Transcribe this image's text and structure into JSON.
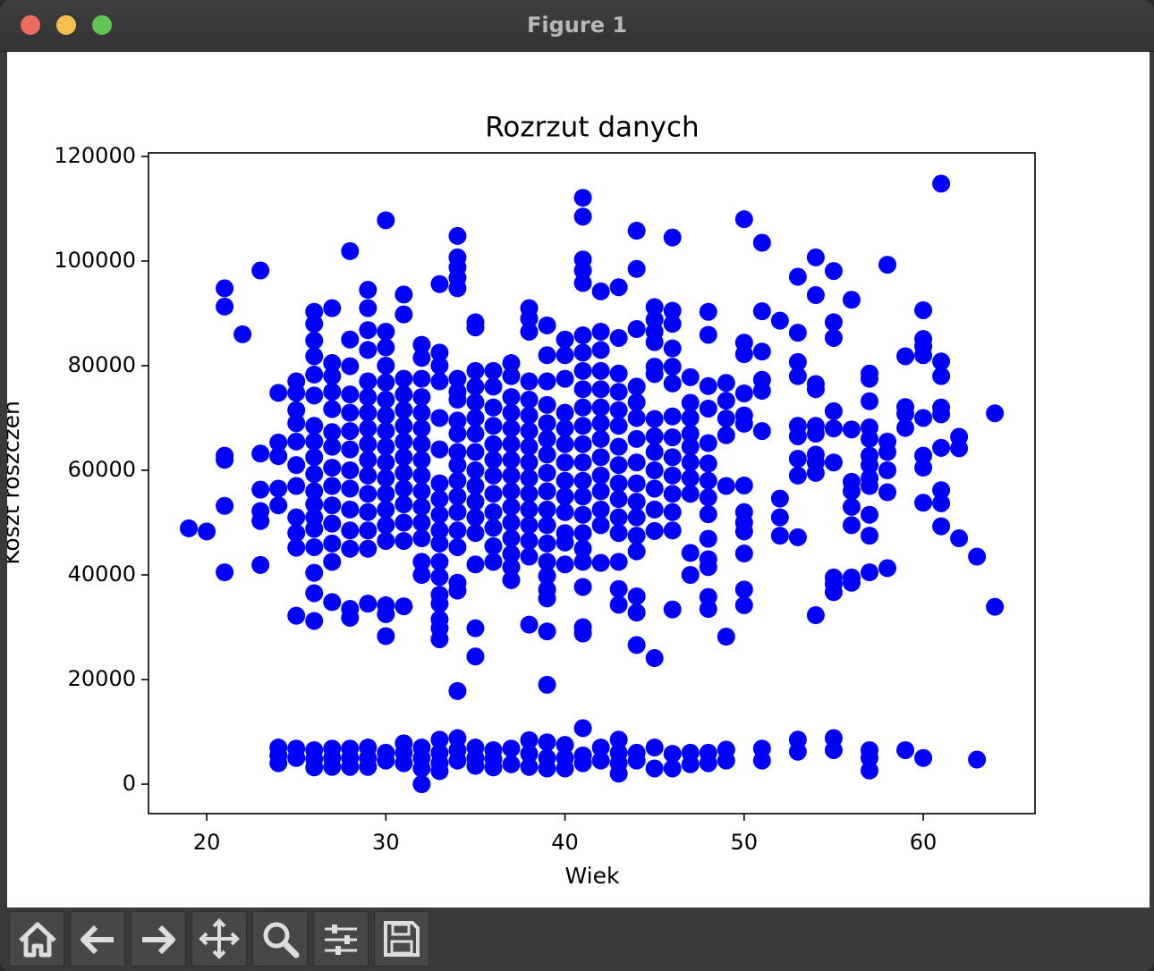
{
  "window": {
    "title": "Figure 1"
  },
  "chart_data": {
    "type": "scatter",
    "title": "Rozrzut danych",
    "x_label": "Wiek",
    "y_label": "Koszt roszczeń",
    "color": "#0000ff",
    "grid": false,
    "xlim": [
      16.75,
      66.24
    ],
    "ylim": [
      -5640,
      120680
    ],
    "xticks": [
      20,
      30,
      40,
      50,
      60
    ],
    "yticks": [
      0,
      20000,
      40000,
      60000,
      80000,
      100000,
      120000
    ],
    "x": [
      19,
      20,
      21,
      21,
      21,
      21,
      21,
      21,
      22,
      23,
      23,
      23,
      23,
      23,
      23,
      24,
      24,
      24,
      24,
      24,
      24,
      24,
      24,
      25,
      25,
      25,
      25,
      25,
      25,
      25,
      25,
      25,
      25,
      25,
      25,
      25,
      26,
      26,
      26,
      26,
      26,
      26,
      26,
      26,
      26,
      26,
      26,
      26,
      26,
      26,
      26,
      26,
      26,
      26,
      26,
      26,
      26,
      27,
      27,
      27,
      27,
      27,
      27,
      27,
      27,
      27,
      27,
      27,
      27,
      27,
      27,
      27,
      27,
      27,
      28,
      28,
      28,
      28,
      28,
      28,
      28,
      28,
      28,
      28,
      28,
      28,
      28,
      28,
      28,
      28,
      28,
      29,
      29,
      29,
      29,
      29,
      29,
      29,
      29,
      29,
      29,
      29,
      29,
      29,
      29,
      29,
      29,
      29,
      29,
      29,
      30,
      30,
      30,
      30,
      30,
      30,
      30,
      30,
      30,
      30,
      30,
      30,
      30,
      30,
      30,
      30,
      30,
      30,
      30,
      30,
      31,
      31,
      31,
      31,
      31,
      31,
      31,
      31,
      31,
      31,
      31,
      31,
      31,
      31,
      31,
      31,
      31,
      32,
      32,
      32,
      32,
      32,
      32,
      32,
      32,
      32,
      32,
      32,
      32,
      32,
      32,
      32,
      32,
      32,
      32,
      32,
      33,
      33,
      33,
      33,
      33,
      33,
      33,
      33,
      33,
      33,
      33,
      33,
      33,
      33,
      33,
      33,
      33,
      33,
      33,
      33,
      33,
      33,
      34,
      34,
      34,
      34,
      34,
      34,
      34,
      34,
      34,
      34,
      34,
      34,
      34,
      34,
      34,
      34,
      34,
      34,
      34,
      34,
      34,
      34,
      34,
      35,
      35,
      35,
      35,
      35,
      35,
      35,
      35,
      35,
      35,
      35,
      35,
      35,
      35,
      35,
      35,
      35,
      35,
      35,
      36,
      36,
      36,
      36,
      36,
      36,
      36,
      36,
      36,
      36,
      36,
      36,
      36,
      36,
      36,
      37,
      37,
      37,
      37,
      37,
      37,
      37,
      37,
      37,
      37,
      37,
      37,
      37,
      37,
      37,
      37,
      37,
      38,
      38,
      38,
      38,
      38,
      38,
      38,
      38,
      38,
      38,
      38,
      38,
      38,
      38,
      38,
      38,
      38,
      38,
      38,
      39,
      39,
      39,
      39,
      39,
      39,
      39,
      39,
      39,
      39,
      39,
      39,
      39,
      39,
      39,
      39,
      39,
      39,
      39,
      39,
      39,
      40,
      40,
      40,
      40,
      40,
      40,
      40,
      40,
      40,
      40,
      40,
      40,
      40,
      40,
      40,
      40,
      41,
      41,
      41,
      41,
      41,
      41,
      41,
      41,
      41,
      41,
      41,
      41,
      41,
      41,
      41,
      41,
      41,
      41,
      41,
      41,
      41,
      41,
      41,
      41,
      41,
      42,
      42,
      42,
      42,
      42,
      42,
      42,
      42,
      42,
      42,
      42,
      42,
      42,
      42,
      42,
      42,
      43,
      43,
      43,
      43,
      43,
      43,
      43,
      43,
      43,
      43,
      43,
      43,
      43,
      43,
      43,
      43,
      43,
      43,
      43,
      44,
      44,
      44,
      44,
      44,
      44,
      44,
      44,
      44,
      44,
      44,
      44,
      44,
      44,
      44,
      44,
      44,
      44,
      45,
      45,
      45,
      45,
      45,
      45,
      45,
      45,
      45,
      45,
      45,
      45,
      45,
      45,
      45,
      45,
      46,
      46,
      46,
      46,
      46,
      46,
      46,
      46,
      46,
      46,
      46,
      46,
      46,
      46,
      46,
      46,
      47,
      47,
      47,
      47,
      47,
      47,
      47,
      47,
      47,
      47,
      47,
      47,
      48,
      48,
      48,
      48,
      48,
      48,
      48,
      48,
      48,
      48,
      48,
      48,
      48,
      48,
      48,
      48,
      49,
      49,
      49,
      49,
      49,
      49,
      49,
      49,
      50,
      50,
      50,
      50,
      50,
      50,
      50,
      50,
      50,
      50,
      50,
      50,
      50,
      51,
      51,
      51,
      51,
      51,
      51,
      51,
      51,
      52,
      52,
      52,
      52,
      53,
      53,
      53,
      53,
      53,
      53,
      53,
      53,
      53,
      53,
      53,
      54,
      54,
      54,
      54,
      54,
      54,
      54,
      54,
      54,
      54,
      55,
      55,
      55,
      55,
      55,
      55,
      55,
      55,
      55,
      55,
      55,
      56,
      56,
      56,
      56,
      56,
      56,
      56,
      56,
      57,
      57,
      57,
      57,
      57,
      57,
      57,
      57,
      57,
      57,
      57,
      57,
      57,
      57,
      57,
      58,
      58,
      58,
      58,
      58,
      58,
      59,
      59,
      59,
      59,
      59,
      60,
      60,
      60,
      60,
      60,
      60,
      60,
      60,
      60,
      61,
      61,
      61,
      61,
      61,
      61,
      61,
      61,
      61,
      62,
      62,
      62,
      63,
      63,
      64,
      64
    ],
    "values": [
      48900,
      48300,
      94800,
      91300,
      62800,
      62000,
      53200,
      40500,
      86000,
      98200,
      63200,
      56300,
      52200,
      50300,
      41900,
      74800,
      65300,
      62700,
      56500,
      53300,
      7000,
      5500,
      4000,
      77000,
      74800,
      71500,
      69000,
      65500,
      61000,
      57000,
      51000,
      48000,
      45200,
      32200,
      6800,
      5000,
      90300,
      88000,
      84800,
      81800,
      78300,
      74300,
      68500,
      65500,
      62500,
      59300,
      56000,
      53500,
      51000,
      48800,
      45300,
      40400,
      36500,
      31200,
      6500,
      4800,
      3200,
      91000,
      80500,
      78000,
      75000,
      71700,
      67300,
      64500,
      60500,
      57000,
      53300,
      49800,
      46000,
      42500,
      34800,
      6800,
      5000,
      3300,
      101900,
      85000,
      79900,
      74500,
      71000,
      67500,
      64000,
      60000,
      56500,
      52500,
      48500,
      45000,
      33500,
      31800,
      6800,
      5000,
      3300,
      94500,
      91000,
      86800,
      83000,
      77000,
      74000,
      71000,
      68000,
      65000,
      62000,
      59000,
      55500,
      52000,
      48500,
      45000,
      34500,
      7000,
      5000,
      3300,
      107800,
      86500,
      83500,
      80000,
      76800,
      73500,
      70500,
      67500,
      64500,
      61500,
      58500,
      55500,
      52500,
      49500,
      46500,
      34200,
      32500,
      28300,
      6000,
      4500,
      93600,
      89800,
      77500,
      74500,
      71500,
      68500,
      65500,
      62500,
      59500,
      56500,
      53500,
      50000,
      46500,
      34000,
      7800,
      6000,
      4000,
      84000,
      81500,
      77500,
      74000,
      71000,
      68000,
      65000,
      62000,
      59000,
      56000,
      53000,
      50000,
      47000,
      42500,
      40000,
      7000,
      5000,
      3000,
      0,
      95600,
      82500,
      80000,
      77000,
      70000,
      64000,
      57500,
      54500,
      51500,
      48500,
      46000,
      42500,
      39600,
      36200,
      34500,
      31500,
      29800,
      27700,
      8500,
      6000,
      4000,
      2500,
      104800,
      100700,
      98800,
      96800,
      94800,
      77500,
      75000,
      73500,
      69500,
      67000,
      63500,
      61000,
      58000,
      55000,
      52000,
      48500,
      45300,
      38500,
      37000,
      17800,
      8800,
      6500,
      4500,
      88300,
      87300,
      79000,
      76000,
      73000,
      70000,
      67000,
      63500,
      60000,
      57000,
      54000,
      51000,
      48000,
      42000,
      29800,
      24400,
      7000,
      5000,
      3500,
      79000,
      76000,
      72000,
      68500,
      65000,
      62000,
      59000,
      55500,
      52000,
      49000,
      45500,
      42500,
      6500,
      4800,
      3200,
      80500,
      78000,
      74000,
      71000,
      68000,
      65000,
      62000,
      59000,
      56000,
      53000,
      50000,
      47000,
      44000,
      41500,
      39000,
      6800,
      3800,
      91000,
      89000,
      86500,
      77000,
      73500,
      70500,
      67500,
      64500,
      61500,
      58500,
      55500,
      52500,
      49500,
      46500,
      43500,
      30500,
      8400,
      5800,
      3300,
      87700,
      82000,
      77000,
      72500,
      69000,
      66000,
      63000,
      59500,
      56000,
      52500,
      49500,
      46000,
      42500,
      39800,
      37200,
      35500,
      29200,
      19000,
      8000,
      5000,
      3000,
      85000,
      82000,
      77500,
      71000,
      68000,
      65000,
      61500,
      58000,
      55000,
      52000,
      48000,
      46200,
      42000,
      7500,
      5000,
      3000,
      112100,
      108500,
      100300,
      98200,
      95800,
      85800,
      82500,
      79000,
      75500,
      72000,
      68500,
      65000,
      61500,
      58000,
      55000,
      51500,
      48000,
      45000,
      42500,
      37700,
      30000,
      28800,
      10700,
      5500,
      4000,
      94200,
      86500,
      83000,
      79000,
      75500,
      72000,
      69000,
      66000,
      62500,
      59000,
      56000,
      52500,
      49500,
      42300,
      7000,
      4500,
      95000,
      85300,
      78500,
      75000,
      71500,
      68500,
      64500,
      61000,
      57500,
      54500,
      51000,
      48000,
      42500,
      37300,
      34300,
      8500,
      6000,
      4000,
      2000,
      105800,
      98500,
      87000,
      76000,
      73000,
      70000,
      66000,
      61500,
      57500,
      54000,
      51000,
      47500,
      44500,
      35900,
      32800,
      26600,
      6000,
      4500,
      91200,
      88800,
      86500,
      84500,
      79800,
      78400,
      69800,
      66500,
      63500,
      60000,
      56500,
      52500,
      48400,
      24100,
      7000,
      3000,
      104500,
      90500,
      88000,
      83300,
      79800,
      76600,
      70300,
      66300,
      62500,
      59000,
      55500,
      52000,
      48500,
      33400,
      5800,
      3000,
      77800,
      72900,
      70000,
      67000,
      64500,
      61500,
      58500,
      55500,
      44200,
      40000,
      6000,
      3800,
      90300,
      85900,
      76100,
      71800,
      65200,
      61300,
      58000,
      54800,
      51600,
      46900,
      43000,
      41500,
      35800,
      33500,
      6000,
      4000,
      76700,
      73300,
      69900,
      66700,
      57000,
      28200,
      6600,
      4500,
      108000,
      84400,
      82200,
      74700,
      70500,
      68900,
      57100,
      52000,
      50000,
      48300,
      44100,
      37200,
      34200,
      103500,
      90400,
      82700,
      77300,
      75200,
      67500,
      6800,
      4500,
      88600,
      54600,
      51000,
      47500,
      97000,
      86300,
      80700,
      78000,
      68500,
      66500,
      62200,
      59000,
      47200,
      8500,
      6200,
      100700,
      93500,
      76500,
      75500,
      68500,
      67000,
      63000,
      61500,
      59500,
      32300,
      98100,
      88300,
      85300,
      71300,
      68000,
      61500,
      39500,
      38300,
      36700,
      8800,
      6500,
      92600,
      67800,
      57800,
      56000,
      53000,
      49500,
      39500,
      38500,
      78500,
      77500,
      73200,
      68200,
      66000,
      62800,
      61000,
      58500,
      57000,
      51500,
      47500,
      40500,
      6500,
      5000,
      2600,
      99300,
      65500,
      63500,
      60000,
      55800,
      41300,
      81800,
      72100,
      70800,
      68100,
      6500,
      90600,
      85100,
      83700,
      82000,
      70000,
      62800,
      60500,
      53800,
      5000,
      114800,
      80800,
      78000,
      72000,
      70700,
      64300,
      56200,
      53700,
      49300,
      66400,
      64200,
      47000,
      43500,
      4700,
      70900,
      33900
    ]
  }
}
